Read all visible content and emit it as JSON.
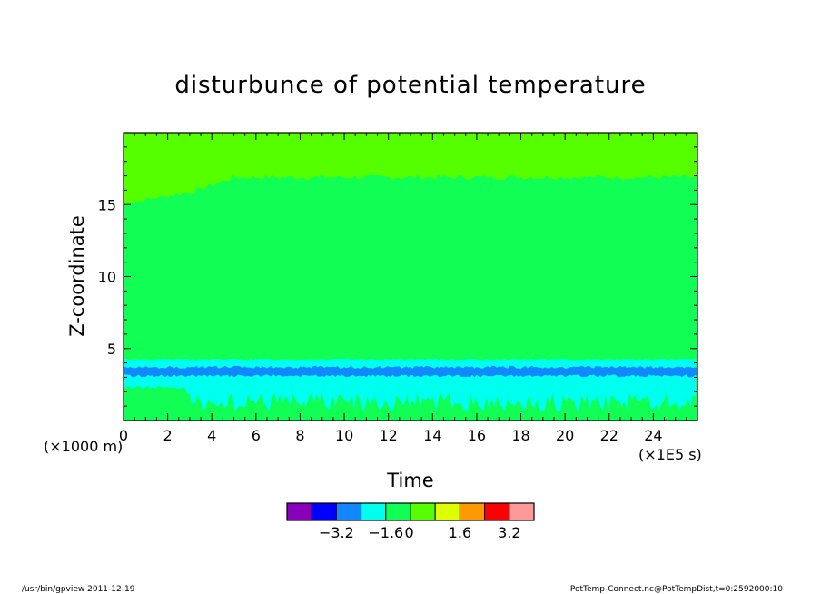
{
  "chart_data": {
    "type": "heatmap",
    "title": "disturbunce of potential temperature",
    "xlabel": "Time",
    "ylabel": "Z-coordinate",
    "x_unit_label": "(×1E5 s)",
    "y_unit_label": "(×1000 m)",
    "xlim": [
      0,
      26
    ],
    "ylim": [
      0,
      20
    ],
    "x_ticks": [
      0,
      2,
      4,
      6,
      8,
      10,
      12,
      14,
      16,
      18,
      20,
      22,
      24
    ],
    "x_tick_labels": [
      "0",
      "2",
      "4",
      "6",
      "8",
      "10",
      "12",
      "14",
      "16",
      "18",
      "20",
      "22",
      "24"
    ],
    "y_ticks": [
      5,
      10,
      15
    ],
    "y_tick_labels": [
      "5",
      "10",
      "15"
    ],
    "layers": [
      {
        "class_range": [
          0.8,
          1.6
        ],
        "color": "#55ff00",
        "region": "top layer above ~15 km (early times) rising to ~17 km after t≈4E5 s"
      },
      {
        "class_range": [
          0,
          0.8
        ],
        "color": "#11ff55",
        "region": "bulk of domain between ~4.2 km and ~17 km; also thin patches near ground"
      },
      {
        "class_range": [
          -0.8,
          0
        ],
        "color": "#00ffee",
        "region": "band ~0.5 to ~4.2 km with ragged lower edge"
      },
      {
        "class_range": [
          -1.6,
          -0.8
        ],
        "color": "#1188ff",
        "region": "thin band ~3.1 to ~3.7 km"
      }
    ],
    "colorbar": {
      "colors": [
        "#8800bb",
        "#0000ff",
        "#1188ff",
        "#00ffee",
        "#11ff55",
        "#55ff00",
        "#ddff00",
        "#ff9900",
        "#ff0000",
        "#ff9999"
      ],
      "tick_labels": [
        "-3.2",
        "-1.6",
        "0",
        "1.6",
        "3.2"
      ]
    }
  },
  "footer": {
    "left": "/usr/bin/gpview  2011-12-19",
    "right": "PotTemp-Connect.nc@PotTempDist,t=0:2592000:10"
  }
}
